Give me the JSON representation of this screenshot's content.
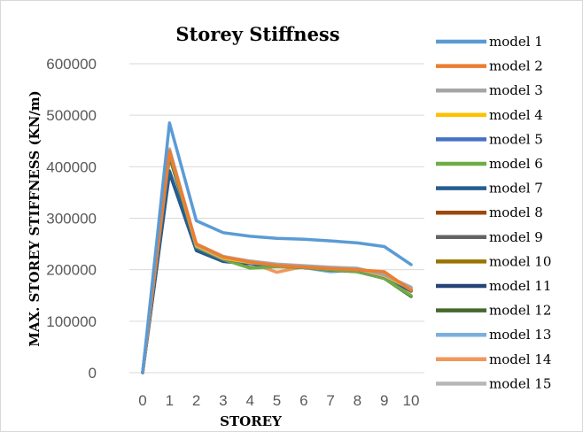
{
  "chart_data": {
    "type": "line",
    "title": "Storey Stiffness",
    "xlabel": "STOREY",
    "ylabel": "MAX. STOREY STIFFNESS (KN/m)",
    "x": [
      0,
      1,
      2,
      3,
      4,
      5,
      6,
      7,
      8,
      9,
      10
    ],
    "ylim": [
      0,
      600000
    ],
    "yticks": [
      "0",
      "100000",
      "200000",
      "300000",
      "400000",
      "500000",
      "600000"
    ],
    "xticks": [
      "0",
      "1",
      "2",
      "3",
      "4",
      "5",
      "6",
      "7",
      "8",
      "9",
      "10"
    ],
    "grid": true,
    "legend": "right",
    "series": [
      {
        "name": "model 1",
        "color": "#5b9bd5",
        "values": [
          0,
          485000,
          295000,
          272000,
          265000,
          261000,
          259000,
          256000,
          252000,
          245000,
          210000
        ]
      },
      {
        "name": "model 2",
        "color": "#ed7d31",
        "values": [
          0,
          430000,
          250000,
          225000,
          215000,
          208000,
          205000,
          202000,
          200000,
          196000,
          160000
        ]
      },
      {
        "name": "model 3",
        "color": "#a5a5a5",
        "values": [
          0,
          432000,
          248000,
          224000,
          216000,
          210000,
          207000,
          204000,
          202000,
          190000,
          165000
        ]
      },
      {
        "name": "model 4",
        "color": "#ffc000",
        "values": [
          0,
          430000,
          246000,
          222000,
          214000,
          209000,
          206000,
          203000,
          201000,
          188000,
          163000
        ]
      },
      {
        "name": "model 5",
        "color": "#4472c4",
        "values": [
          0,
          428000,
          245000,
          221000,
          213000,
          208000,
          205000,
          202000,
          200000,
          187000,
          162000
        ]
      },
      {
        "name": "model 6",
        "color": "#70ad47",
        "values": [
          0,
          425000,
          244000,
          220000,
          203000,
          206000,
          204000,
          200000,
          196000,
          183000,
          150000
        ]
      },
      {
        "name": "model 7",
        "color": "#255e91",
        "values": [
          0,
          392000,
          238000,
          217000,
          213000,
          207000,
          204000,
          201000,
          199000,
          186000,
          160000
        ]
      },
      {
        "name": "model 8",
        "color": "#9e480e",
        "values": [
          0,
          430000,
          246000,
          222000,
          214000,
          208000,
          205000,
          202000,
          200000,
          187000,
          162000
        ]
      },
      {
        "name": "model 9",
        "color": "#636363",
        "values": [
          0,
          428000,
          245000,
          221000,
          213000,
          207000,
          204000,
          201000,
          199000,
          186000,
          158000
        ]
      },
      {
        "name": "model 10",
        "color": "#997300",
        "values": [
          0,
          430000,
          246000,
          222000,
          214000,
          208000,
          205000,
          202000,
          200000,
          187000,
          161000
        ]
      },
      {
        "name": "model 11",
        "color": "#264478",
        "values": [
          0,
          388000,
          237000,
          216000,
          212000,
          207000,
          204000,
          201000,
          199000,
          186000,
          159000
        ]
      },
      {
        "name": "model 12",
        "color": "#43682b",
        "values": [
          0,
          420000,
          244000,
          220000,
          204000,
          206000,
          204000,
          199000,
          196000,
          183000,
          148000
        ]
      },
      {
        "name": "model 13",
        "color": "#7cafdd",
        "values": [
          0,
          430000,
          246000,
          222000,
          214000,
          208000,
          204000,
          196000,
          200000,
          187000,
          162000
        ]
      },
      {
        "name": "model 14",
        "color": "#f1975a",
        "values": [
          0,
          432000,
          248000,
          224000,
          214000,
          195000,
          206000,
          203000,
          201000,
          188000,
          163000
        ]
      },
      {
        "name": "model 15",
        "color": "#b7b7b7",
        "values": [
          0,
          435000,
          250000,
          226000,
          217000,
          211000,
          208000,
          205000,
          203000,
          190000,
          166000
        ]
      }
    ]
  }
}
